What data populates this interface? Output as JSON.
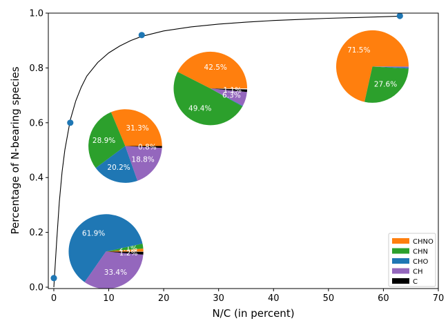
{
  "chart_data": {
    "type": "scatter",
    "title": "",
    "xlabel": "N/C (in percent)",
    "ylabel": "Percentage of N-bearing species",
    "xlim": [
      -1,
      70
    ],
    "ylim": [
      -0.005,
      1.0
    ],
    "xticks": [
      0,
      10,
      20,
      30,
      40,
      50,
      60,
      70
    ],
    "yticks": [
      0.0,
      0.2,
      0.4,
      0.6,
      0.8,
      1.0
    ],
    "xtick_labels": [
      "0",
      "10",
      "20",
      "30",
      "40",
      "50",
      "60",
      "70"
    ],
    "ytick_labels": [
      "0.0",
      "0.2",
      "0.4",
      "0.6",
      "0.8",
      "1.0"
    ],
    "grid": false,
    "legend_position": "lower-right",
    "points": {
      "color": "#1f77b4",
      "x": [
        0.0,
        3.0,
        16.0,
        63.0
      ],
      "y": [
        0.033,
        0.6,
        0.92,
        0.99
      ]
    },
    "fit_curve": {
      "color": "#000000",
      "x": [
        0,
        0.5,
        1,
        1.5,
        2,
        3,
        4,
        5,
        6,
        8,
        10,
        12,
        14,
        16,
        20,
        25,
        30,
        35,
        40,
        45,
        50,
        55,
        60,
        63
      ],
      "y": [
        0.0,
        0.16,
        0.31,
        0.42,
        0.5,
        0.61,
        0.68,
        0.73,
        0.77,
        0.82,
        0.855,
        0.88,
        0.9,
        0.915,
        0.935,
        0.95,
        0.96,
        0.967,
        0.973,
        0.977,
        0.981,
        0.984,
        0.987,
        0.989
      ]
    },
    "legend": [
      {
        "label": "CHNO",
        "color": "#ff7f0e"
      },
      {
        "label": "CHN",
        "color": "#2ca02c"
      },
      {
        "label": "CHO",
        "color": "#1f77b4"
      },
      {
        "label": "CH",
        "color": "#9467bd"
      },
      {
        "label": "C",
        "color": "#000000"
      }
    ],
    "pies": [
      {
        "center": [
          9.5,
          0.13
        ],
        "radius_x": 6.8,
        "slices": [
          {
            "category": "CHNO",
            "pct": 1.3,
            "label": "1.3%"
          },
          {
            "category": "CHN",
            "pct": 2.1,
            "label": "2.1%"
          },
          {
            "category": "CHO",
            "pct": 61.9,
            "label": "61.9%"
          },
          {
            "category": "CH",
            "pct": 33.4,
            "label": "33.4%"
          },
          {
            "category": "C",
            "pct": 1.2,
            "label": "1.2%"
          }
        ]
      },
      {
        "center": [
          13.0,
          0.515
        ],
        "radius_x": 6.7,
        "slices": [
          {
            "category": "CHNO",
            "pct": 31.3,
            "label": "31.3%"
          },
          {
            "category": "CHN",
            "pct": 28.9,
            "label": "28.9%"
          },
          {
            "category": "CHO",
            "pct": 20.2,
            "label": "20.2%"
          },
          {
            "category": "CH",
            "pct": 18.8,
            "label": "18.8%"
          },
          {
            "category": "C",
            "pct": 0.8,
            "label": "0.8%"
          }
        ]
      },
      {
        "center": [
          28.5,
          0.725
        ],
        "radius_x": 6.7,
        "slices": [
          {
            "category": "CHNO",
            "pct": 42.5,
            "label": "42.5%"
          },
          {
            "category": "CHN",
            "pct": 49.4,
            "label": "49.4%"
          },
          {
            "category": "CHO",
            "pct": 0.3,
            "label": ""
          },
          {
            "category": "CH",
            "pct": 6.3,
            "label": "6.3%"
          },
          {
            "category": "C",
            "pct": 1.1,
            "label": "1.1%"
          }
        ]
      },
      {
        "center": [
          58.0,
          0.805
        ],
        "radius_x": 6.6,
        "slices": [
          {
            "category": "CHNO",
            "pct": 71.5,
            "label": "71.5%"
          },
          {
            "category": "CHN",
            "pct": 27.6,
            "label": "27.6%"
          },
          {
            "category": "CHO",
            "pct": 0.5,
            "label": ""
          },
          {
            "category": "CH",
            "pct": 0.4,
            "label": ""
          },
          {
            "category": "C",
            "pct": 0.0,
            "label": ""
          }
        ]
      }
    ]
  }
}
